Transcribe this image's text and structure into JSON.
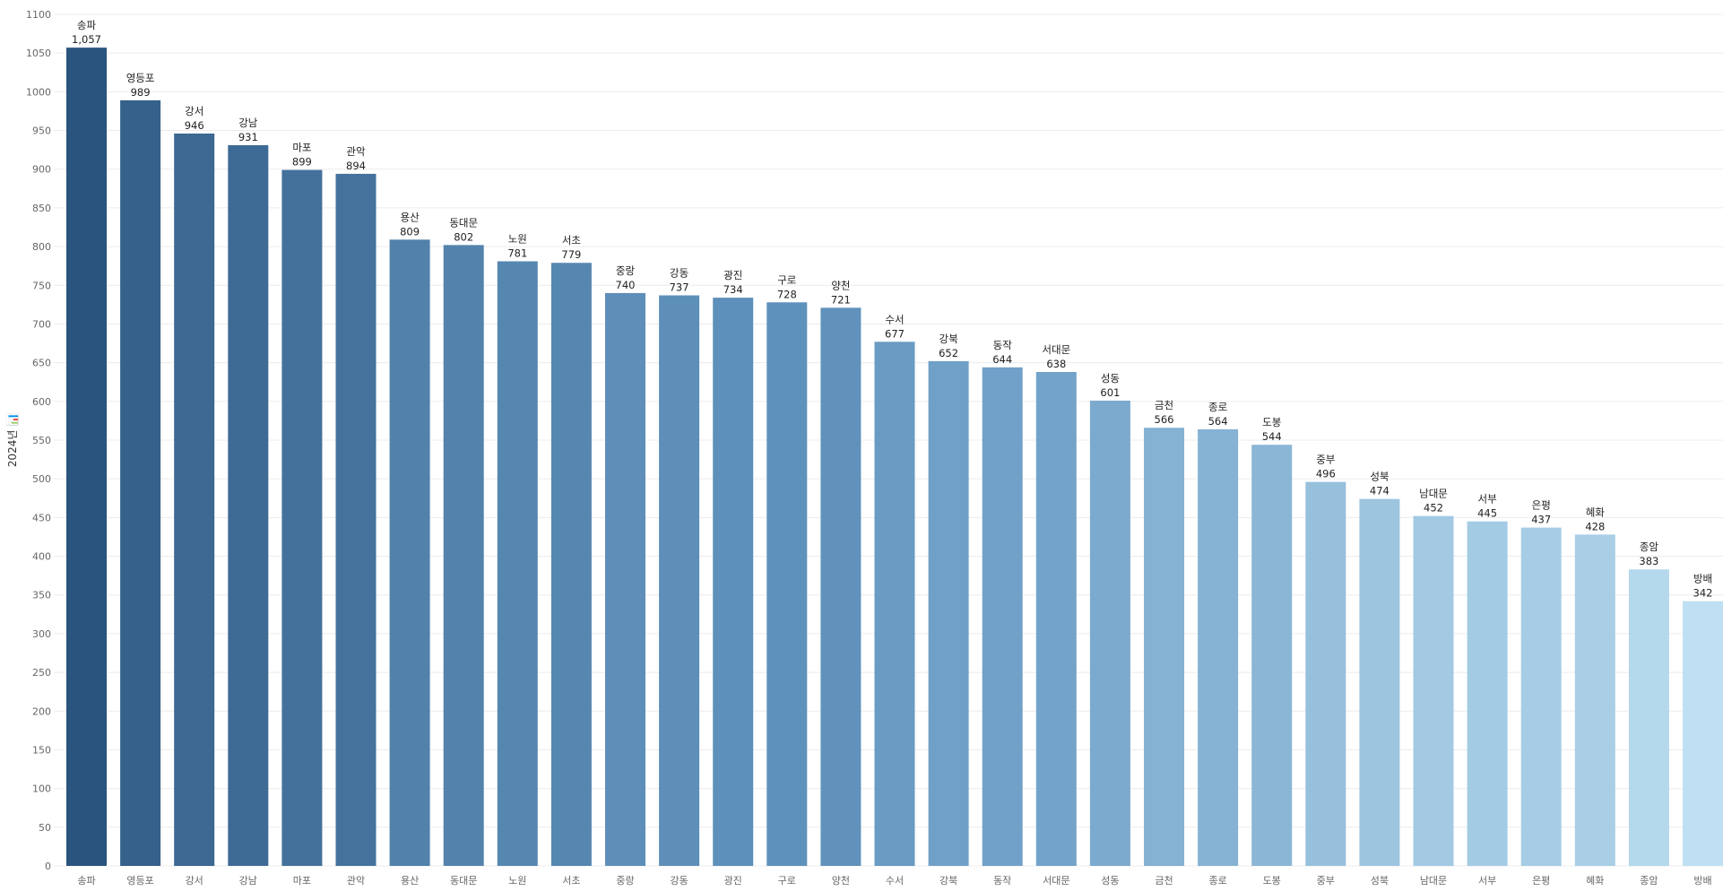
{
  "chart_data": {
    "type": "bar",
    "title": "",
    "xlabel": "",
    "ylabel": "2024년 📊",
    "ylim": [
      0,
      1100
    ],
    "ytick_step": 50,
    "grid": true,
    "categories": [
      "송파",
      "영등포",
      "강서",
      "강남",
      "마포",
      "관악",
      "용산",
      "동대문",
      "노원",
      "서초",
      "중랑",
      "강동",
      "광진",
      "구로",
      "양천",
      "수서",
      "강북",
      "동작",
      "서대문",
      "성동",
      "금천",
      "종로",
      "도봉",
      "중부",
      "성북",
      "남대문",
      "서부",
      "은평",
      "혜화",
      "종암",
      "방배"
    ],
    "values": [
      1057,
      989,
      946,
      931,
      899,
      894,
      809,
      802,
      781,
      779,
      740,
      737,
      734,
      728,
      721,
      677,
      652,
      644,
      638,
      601,
      566,
      564,
      544,
      496,
      474,
      452,
      445,
      437,
      428,
      383,
      342
    ],
    "value_labels": [
      "1,057",
      "989",
      "946",
      "931",
      "899",
      "894",
      "809",
      "802",
      "781",
      "779",
      "740",
      "737",
      "734",
      "728",
      "721",
      "677",
      "652",
      "644",
      "638",
      "601",
      "566",
      "564",
      "544",
      "496",
      "474",
      "452",
      "445",
      "437",
      "428",
      "383",
      "342"
    ],
    "color_scale": {
      "high": "#2a547e",
      "mid": "#6396c0",
      "low": "#bfe0f2"
    }
  }
}
